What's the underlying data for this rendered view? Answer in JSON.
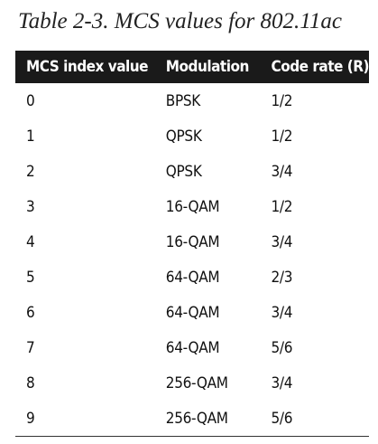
{
  "caption": "Table 2-3. MCS values for 802.11ac",
  "table": {
    "columns": [
      "MCS index value",
      "Modulation",
      "Code rate (R)"
    ],
    "rows": [
      [
        "0",
        "BPSK",
        "1/2"
      ],
      [
        "1",
        "QPSK",
        "1/2"
      ],
      [
        "2",
        "QPSK",
        "3/4"
      ],
      [
        "3",
        "16-QAM",
        "1/2"
      ],
      [
        "4",
        "16-QAM",
        "3/4"
      ],
      [
        "5",
        "64-QAM",
        "2/3"
      ],
      [
        "6",
        "64-QAM",
        "3/4"
      ],
      [
        "7",
        "64-QAM",
        "5/6"
      ],
      [
        "8",
        "256-QAM",
        "3/4"
      ],
      [
        "9",
        "256-QAM",
        "5/6"
      ]
    ]
  }
}
